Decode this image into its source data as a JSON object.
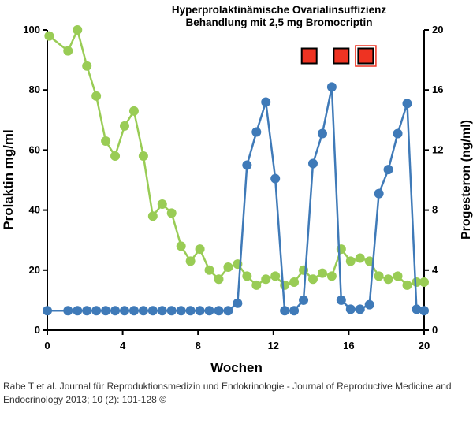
{
  "chart_data": {
    "type": "line",
    "title": [
      "Hyperprolaktinämische Ovarialinsuffizienz",
      "Behandlung mit 2,5 mg Bromocriptin"
    ],
    "xlabel": "Wochen",
    "ylabel_left": "Prolaktin mg/ml",
    "ylabel_right": "Progesteron (ng/ml)",
    "xlim": [
      0,
      20
    ],
    "ylim_left": [
      0,
      100
    ],
    "ylim_right": [
      0,
      20
    ],
    "x_ticks": [
      0,
      4,
      8,
      12,
      16,
      20
    ],
    "y_ticks_left": [
      0,
      20,
      40,
      60,
      80,
      100
    ],
    "y_ticks_right": [
      0,
      4,
      8,
      12,
      16,
      20
    ],
    "grid": false,
    "series": [
      {
        "name": "Prolaktin",
        "axis": "left",
        "color": "#99cc55",
        "x": [
          0.1,
          1.1,
          1.6,
          2.1,
          2.6,
          3.1,
          3.6,
          4.1,
          4.6,
          5.1,
          5.6,
          6.1,
          6.6,
          7.1,
          7.6,
          8.1,
          8.6,
          9.1,
          9.6,
          10.1,
          10.6,
          11.1,
          11.6,
          12.1,
          12.6,
          13.1,
          13.6,
          14.1,
          14.6,
          15.1,
          15.6,
          16.1,
          16.6,
          17.1,
          17.6,
          18.1,
          18.6,
          19.1,
          19.6,
          20.0
        ],
        "y": [
          98,
          93,
          100,
          88,
          78,
          63,
          58,
          68,
          73,
          58,
          38,
          42,
          39,
          28,
          23,
          27,
          20,
          17,
          21,
          22,
          18,
          15,
          17,
          18,
          15,
          16,
          20,
          17,
          19,
          18,
          27,
          23,
          24,
          23,
          18,
          17,
          18,
          15,
          16,
          16
        ]
      },
      {
        "name": "Progesteron",
        "axis": "right",
        "color": "#3f7ab8",
        "x": [
          0,
          1.1,
          1.6,
          2.1,
          2.6,
          3.1,
          3.6,
          4.1,
          4.6,
          5.1,
          5.6,
          6.1,
          6.6,
          7.1,
          7.6,
          8.1,
          8.6,
          9.1,
          9.6,
          10.1,
          10.6,
          11.1,
          11.6,
          12.1,
          12.6,
          13.1,
          13.6,
          14.1,
          14.6,
          15.1,
          15.6,
          16.1,
          16.6,
          17.1,
          17.6,
          18.1,
          18.6,
          19.1,
          19.6,
          20.0
        ],
        "y": [
          1.3,
          1.3,
          1.3,
          1.3,
          1.3,
          1.3,
          1.3,
          1.3,
          1.3,
          1.3,
          1.3,
          1.3,
          1.3,
          1.3,
          1.3,
          1.3,
          1.3,
          1.3,
          1.3,
          1.8,
          11.0,
          13.2,
          15.2,
          10.1,
          1.3,
          1.3,
          2.0,
          11.1,
          13.1,
          16.2,
          2.0,
          1.4,
          1.4,
          1.7,
          9.1,
          10.7,
          13.1,
          15.1,
          1.4,
          1.3
        ]
      }
    ],
    "markers": {
      "description": "Bromocriptin",
      "color": "#ee3322",
      "x": [
        13.9,
        15.6,
        16.9
      ],
      "highlighted_index": 2
    }
  },
  "citation": "Rabe T et al. Journal für Reproduktionsmedizin und Endokrinologie - Journal of Reproductive Medicine and Endocrinology 2013; 10 (2): 101-128 ©"
}
